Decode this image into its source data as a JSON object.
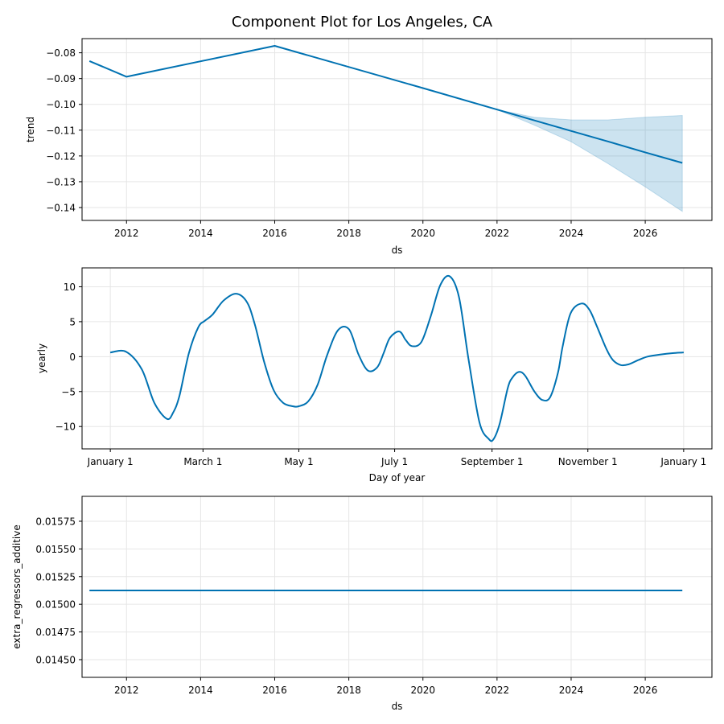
{
  "figure": {
    "title": "Component Plot for Los Angeles, CA"
  },
  "chart_data": [
    {
      "type": "line",
      "name": "trend",
      "xlabel": "ds",
      "ylabel": "trend",
      "xlim": [
        2010.8,
        2027.8
      ],
      "ylim": [
        -0.145,
        -0.0745
      ],
      "x_ticks": [
        2012,
        2014,
        2016,
        2018,
        2020,
        2022,
        2024,
        2026
      ],
      "y_ticks": [
        -0.08,
        -0.09,
        -0.1,
        -0.11,
        -0.12,
        -0.13,
        -0.14
      ],
      "x_tick_labels": [
        "2012",
        "2014",
        "2016",
        "2018",
        "2020",
        "2022",
        "2024",
        "2026"
      ],
      "y_tick_labels": [
        "−0.08",
        "−0.09",
        "−0.10",
        "−0.11",
        "−0.12",
        "−0.13",
        "−0.14"
      ],
      "line_color": "#0072B2",
      "band_color": "#0072B2",
      "grid": true,
      "x": [
        2011.0,
        2012.0,
        2016.0,
        2020.0,
        2022.0,
        2023.0,
        2024.0,
        2025.0,
        2026.0,
        2027.0
      ],
      "y": [
        -0.0832,
        -0.0893,
        -0.0773,
        -0.0937,
        -0.102,
        -0.1062,
        -0.1103,
        -0.1144,
        -0.1186,
        -0.1227
      ],
      "upper": [
        -0.0832,
        -0.0893,
        -0.0773,
        -0.0937,
        -0.102,
        -0.105,
        -0.106,
        -0.106,
        -0.105,
        -0.1043
      ],
      "lower": [
        -0.0832,
        -0.0893,
        -0.0773,
        -0.0937,
        -0.102,
        -0.108,
        -0.1145,
        -0.123,
        -0.132,
        -0.1415
      ]
    },
    {
      "type": "line",
      "name": "yearly",
      "xlabel": "Day of year",
      "ylabel": "yearly",
      "xlim": [
        -18,
        383
      ],
      "ylim": [
        -13.2,
        12.7
      ],
      "x_ticks": [
        0,
        59,
        120,
        181,
        243,
        304,
        365
      ],
      "x_tick_labels": [
        "January 1",
        "March 1",
        "May 1",
        "July 1",
        "September 1",
        "November 1",
        "January 1"
      ],
      "y_ticks": [
        10,
        5,
        0,
        -5,
        -10
      ],
      "y_tick_labels": [
        "10",
        "5",
        "0",
        "−5",
        "−10"
      ],
      "line_color": "#0072B2",
      "grid": true,
      "x": [
        0,
        10,
        20,
        28,
        36,
        40,
        44,
        50,
        56,
        60,
        65,
        72,
        80,
        87,
        92,
        98,
        104,
        110,
        116,
        120,
        126,
        132,
        138,
        145,
        152,
        158,
        164,
        170,
        174,
        178,
        184,
        188,
        192,
        198,
        204,
        210,
        216,
        222,
        228,
        235,
        241,
        244,
        248,
        253,
        256,
        260,
        264,
        270,
        275,
        280,
        285,
        288,
        293,
        300,
        305,
        310,
        316,
        320,
        325,
        330,
        336,
        342,
        350,
        358,
        365
      ],
      "y": [
        0.6,
        0.7,
        -1.8,
        -6.6,
        -8.9,
        -8.0,
        -5.6,
        0.5,
        4.2,
        5.1,
        6.0,
        8.0,
        9.0,
        7.8,
        4.6,
        -0.8,
        -4.8,
        -6.6,
        -7.1,
        -7.1,
        -6.4,
        -4.0,
        0.2,
        3.8,
        3.9,
        0.3,
        -2.0,
        -1.5,
        0.5,
        2.7,
        3.6,
        2.4,
        1.5,
        2.1,
        5.8,
        10.2,
        11.5,
        8.5,
        -0.3,
        -9.4,
        -11.8,
        -11.8,
        -9.5,
        -4.5,
        -3.0,
        -2.2,
        -2.7,
        -5.0,
        -6.2,
        -5.8,
        -2.3,
        1.5,
        6.2,
        7.6,
        6.7,
        4.2,
        1.0,
        -0.5,
        -1.2,
        -1.1,
        -0.5,
        0.0,
        0.3,
        0.5,
        0.6
      ]
    },
    {
      "type": "line",
      "name": "extra_regressors_additive",
      "xlabel": "ds",
      "ylabel": "extra_regressors_additive",
      "xlim": [
        2010.8,
        2027.8
      ],
      "ylim": [
        0.01434,
        0.015975
      ],
      "x_ticks": [
        2012,
        2014,
        2016,
        2018,
        2020,
        2022,
        2024,
        2026
      ],
      "x_tick_labels": [
        "2012",
        "2014",
        "2016",
        "2018",
        "2020",
        "2022",
        "2024",
        "2026"
      ],
      "y_ticks": [
        0.01575,
        0.0155,
        0.01525,
        0.015,
        0.01475,
        0.0145
      ],
      "y_tick_labels": [
        "0.01575",
        "0.01550",
        "0.01525",
        "0.01500",
        "0.01475",
        "0.01450"
      ],
      "line_color": "#0072B2",
      "grid": true,
      "x": [
        2011.0,
        2027.0
      ],
      "y": [
        0.015125,
        0.015125
      ]
    }
  ]
}
